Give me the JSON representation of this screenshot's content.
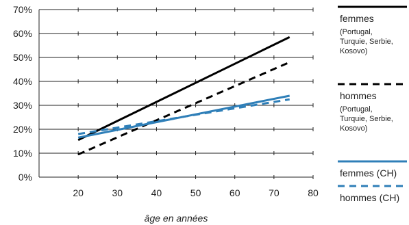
{
  "chart_data": {
    "type": "line",
    "title": "",
    "xlabel": "âge en années",
    "ylabel": "",
    "xlim": [
      10,
      80
    ],
    "ylim": [
      0,
      70
    ],
    "x_ticks": [
      "20",
      "30",
      "40",
      "50",
      "60",
      "70",
      "80"
    ],
    "y_ticks": [
      "0%",
      "10%",
      "20%",
      "30%",
      "40%",
      "50%",
      "60%",
      "70%"
    ],
    "grid": "horizontal",
    "legend_position": "right",
    "series": [
      {
        "name": "femmes",
        "name_note": "(Portugal, Turquie, Serbie, Kosovo)",
        "color": "#000000",
        "style": "solid",
        "x": [
          20,
          74
        ],
        "y": [
          15.5,
          58.5
        ]
      },
      {
        "name": "hommes",
        "name_note": "(Portugal, Turquie, Serbie, Kosovo)",
        "color": "#000000",
        "style": "dashed",
        "x": [
          20,
          74
        ],
        "y": [
          9.5,
          48
        ]
      },
      {
        "name": "femmes (CH)",
        "name_note": "",
        "color": "#2f7fb8",
        "style": "solid",
        "x": [
          20,
          74
        ],
        "y": [
          16.5,
          34
        ]
      },
      {
        "name": "hommes (CH)",
        "name_note": "",
        "color": "#2f7fb8",
        "style": "dashed",
        "x": [
          20,
          74
        ],
        "y": [
          18,
          32.5
        ]
      }
    ]
  }
}
